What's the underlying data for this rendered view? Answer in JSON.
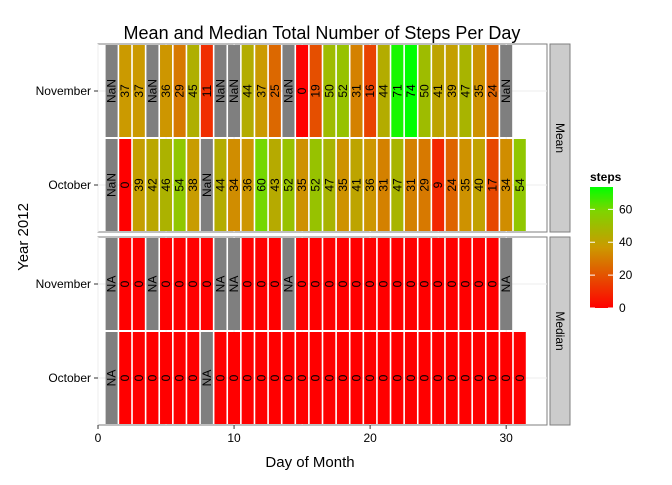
{
  "chart_data": {
    "type": "heatmap",
    "title": "Mean and Median Total Number of Steps Per Day",
    "xlabel": "Day of Month",
    "ylabel": "Year  2012",
    "xlim": [
      0,
      33
    ],
    "x_ticks": [
      0,
      10,
      20,
      30
    ],
    "grid": true,
    "rows": [
      "October",
      "November"
    ],
    "facets": [
      {
        "name": "Mean",
        "series": [
          {
            "name": "November",
            "x": [
              1,
              2,
              3,
              4,
              5,
              6,
              7,
              8,
              9,
              10,
              11,
              12,
              13,
              14,
              15,
              16,
              17,
              18,
              19,
              20,
              21,
              22,
              23,
              24,
              25,
              26,
              27,
              28,
              29,
              30
            ],
            "labels": [
              "NaN",
              "37",
              "37",
              "NaN",
              "36",
              "29",
              "45",
              "11",
              "NaN",
              "NaN",
              "44",
              "37",
              "25",
              "NaN",
              "0",
              "19",
              "50",
              "52",
              "31",
              "16",
              "44",
              "71",
              "74",
              "50",
              "41",
              "39",
              "47",
              "35",
              "24",
              "NaN"
            ]
          },
          {
            "name": "October",
            "x": [
              1,
              2,
              3,
              4,
              5,
              6,
              7,
              8,
              9,
              10,
              11,
              12,
              13,
              14,
              15,
              16,
              17,
              18,
              19,
              20,
              21,
              22,
              23,
              24,
              25,
              26,
              27,
              28,
              29,
              30,
              31
            ],
            "labels": [
              "NaN",
              "0",
              "39",
              "42",
              "46",
              "54",
              "38",
              "NaN",
              "44",
              "34",
              "36",
              "60",
              "43",
              "52",
              "35",
              "52",
              "47",
              "35",
              "41",
              "36",
              "31",
              "47",
              "31",
              "29",
              "9",
              "24",
              "35",
              "40",
              "17",
              "34",
              "54"
            ]
          }
        ]
      },
      {
        "name": "Median",
        "series": [
          {
            "name": "November",
            "x": [
              1,
              2,
              3,
              4,
              5,
              6,
              7,
              8,
              9,
              10,
              11,
              12,
              13,
              14,
              15,
              16,
              17,
              18,
              19,
              20,
              21,
              22,
              23,
              24,
              25,
              26,
              27,
              28,
              29,
              30
            ],
            "labels": [
              "NA",
              "0",
              "0",
              "NA",
              "0",
              "0",
              "0",
              "0",
              "NA",
              "NA",
              "0",
              "0",
              "0",
              "NA",
              "0",
              "0",
              "0",
              "0",
              "0",
              "0",
              "0",
              "0",
              "0",
              "0",
              "0",
              "0",
              "0",
              "0",
              "0",
              "NA"
            ]
          },
          {
            "name": "October",
            "x": [
              1,
              2,
              3,
              4,
              5,
              6,
              7,
              8,
              9,
              10,
              11,
              12,
              13,
              14,
              15,
              16,
              17,
              18,
              19,
              20,
              21,
              22,
              23,
              24,
              25,
              26,
              27,
              28,
              29,
              30,
              31
            ],
            "labels": [
              "NA",
              "0",
              "0",
              "0",
              "0",
              "0",
              "0",
              "NA",
              "0",
              "0",
              "0",
              "0",
              "0",
              "0",
              "0",
              "0",
              "0",
              "0",
              "0",
              "0",
              "0",
              "0",
              "0",
              "0",
              "0",
              "0",
              "0",
              "0",
              "0",
              "0",
              "0"
            ]
          }
        ]
      }
    ],
    "legend": {
      "title": "steps",
      "ticks": [
        0,
        20,
        40,
        60
      ],
      "range": [
        0,
        73.6
      ],
      "placement": "right",
      "colors": [
        "#ff0000",
        "#00ff00"
      ]
    },
    "na_color": "#7f7f7f"
  }
}
